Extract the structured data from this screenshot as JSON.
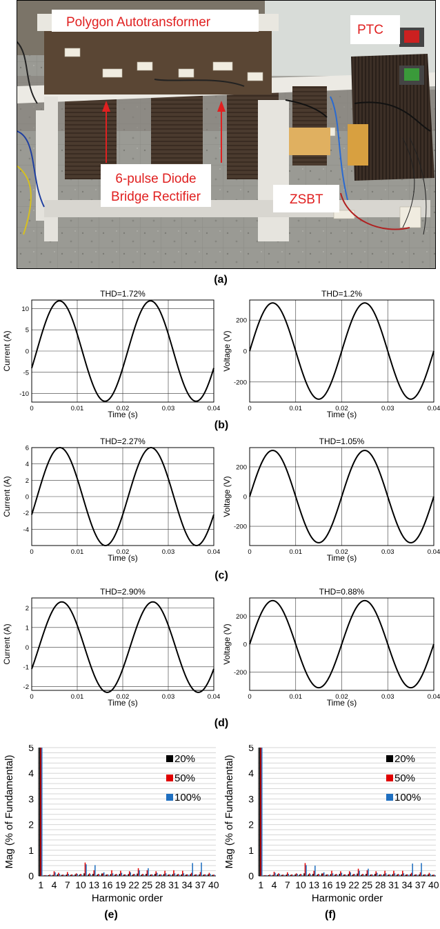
{
  "photo": {
    "labels": {
      "polygon": "Polygon Autotransformer",
      "ptc": "PTC",
      "rectifier_line1": "6-pulse Diode",
      "rectifier_line2": "Bridge Rectifier",
      "zsbt": "ZSBT"
    },
    "colors": {
      "label_text": "#e02020",
      "arrow": "#e02020"
    }
  },
  "captions": {
    "a": "(a)",
    "b": "(b)",
    "c": "(c)",
    "d": "(d)",
    "e": "(e)",
    "f": "(f)"
  },
  "chart_data": [
    {
      "id": "b-current",
      "type": "line",
      "title": "THD=1.72%",
      "xlabel": "Time (s)",
      "ylabel": "Current (A)",
      "xlim": [
        0,
        0.04
      ],
      "ylim": [
        -12,
        12
      ],
      "xticks": [
        "0",
        "0.01",
        "0.02",
        "0.03",
        "0.04"
      ],
      "yticks": [
        {
          "v": 10,
          "t": "10"
        },
        {
          "v": 5,
          "t": "5"
        },
        {
          "v": 0,
          "t": "0"
        },
        {
          "v": -5,
          "t": "-5"
        },
        {
          "v": -10,
          "t": "-10"
        }
      ],
      "waveform": {
        "amplitude": 11.8,
        "frequency_hz": 50,
        "zero_crossing_s": 0.0011
      }
    },
    {
      "id": "b-voltage",
      "type": "line",
      "title": "THD=1.2%",
      "xlabel": "Time (s)",
      "ylabel": "Voltage (V)",
      "xlim": [
        0,
        0.04
      ],
      "ylim": [
        -330,
        330
      ],
      "xticks": [
        "0",
        "0.01",
        "0.02",
        "0.03",
        "0.04"
      ],
      "yticks": [
        {
          "v": 200,
          "t": "200"
        },
        {
          "v": 0,
          "t": "0"
        },
        {
          "v": -200,
          "t": "-200"
        }
      ],
      "waveform": {
        "amplitude": 311,
        "frequency_hz": 50,
        "zero_crossing_s": 0
      }
    },
    {
      "id": "c-current",
      "type": "line",
      "title": "THD=2.27%",
      "xlabel": "Time (s)",
      "ylabel": "Current (A)",
      "xlim": [
        0,
        0.04
      ],
      "ylim": [
        -6,
        6
      ],
      "xticks": [
        "0",
        "0.01",
        "0.02",
        "0.03",
        "0.04"
      ],
      "yticks": [
        {
          "v": 6,
          "t": "6"
        },
        {
          "v": 4,
          "t": "4"
        },
        {
          "v": 2,
          "t": "2"
        },
        {
          "v": 0,
          "t": "0"
        },
        {
          "v": -2,
          "t": "-2"
        },
        {
          "v": -4,
          "t": "-4"
        }
      ],
      "waveform": {
        "amplitude": 6.0,
        "frequency_hz": 50,
        "zero_crossing_s": 0.0012
      }
    },
    {
      "id": "c-voltage",
      "type": "line",
      "title": "THD=1.05%",
      "xlabel": "Time (s)",
      "ylabel": "Voltage (V)",
      "xlim": [
        0,
        0.04
      ],
      "ylim": [
        -330,
        330
      ],
      "xticks": [
        "0",
        "0.01",
        "0.02",
        "0.03",
        "0.04"
      ],
      "yticks": [
        {
          "v": 200,
          "t": "200"
        },
        {
          "v": 0,
          "t": "0"
        },
        {
          "v": -200,
          "t": "-200"
        }
      ],
      "waveform": {
        "amplitude": 311,
        "frequency_hz": 50,
        "zero_crossing_s": 0
      }
    },
    {
      "id": "d-current",
      "type": "line",
      "title": "THD=2.90%",
      "xlabel": "Time (s)",
      "ylabel": "Current (A)",
      "xlim": [
        0,
        0.04
      ],
      "ylim": [
        -2.2,
        2.5
      ],
      "xticks": [
        "0",
        "0.01",
        "0.02",
        "0.03",
        "0.04"
      ],
      "yticks": [
        {
          "v": 2,
          "t": "2"
        },
        {
          "v": 1,
          "t": "1"
        },
        {
          "v": 0,
          "t": "0"
        },
        {
          "v": -1,
          "t": "-1"
        },
        {
          "v": -2,
          "t": "-2"
        }
      ],
      "waveform": {
        "amplitude": 2.3,
        "frequency_hz": 50,
        "zero_crossing_s": 0.0016
      }
    },
    {
      "id": "d-voltage",
      "type": "line",
      "title": "THD=0.88%",
      "xlabel": "Time (s)",
      "ylabel": "Voltage (V)",
      "xlim": [
        0,
        0.04
      ],
      "ylim": [
        -330,
        330
      ],
      "xticks": [
        "0",
        "0.01",
        "0.02",
        "0.03",
        "0.04"
      ],
      "yticks": [
        {
          "v": 200,
          "t": "200"
        },
        {
          "v": 0,
          "t": "0"
        },
        {
          "v": -200,
          "t": "-200"
        }
      ],
      "waveform": {
        "amplitude": 311,
        "frequency_hz": 50,
        "zero_crossing_s": 0
      }
    },
    {
      "id": "e",
      "type": "bar",
      "xlabel": "Harmonic order",
      "ylabel": "Mag (% of Fundamental)",
      "ylim": [
        0,
        5
      ],
      "yticks": [
        "0",
        "1",
        "2",
        "3",
        "4",
        "5"
      ],
      "categories": [
        "1",
        "2",
        "3",
        "4",
        "5",
        "6",
        "7",
        "8",
        "9",
        "10",
        "11",
        "12",
        "13",
        "14",
        "15",
        "16",
        "17",
        "18",
        "19",
        "20",
        "21",
        "22",
        "23",
        "24",
        "25",
        "26",
        "27",
        "28",
        "29",
        "30",
        "31",
        "32",
        "33",
        "34",
        "35",
        "36",
        "37",
        "38",
        "39",
        "40"
      ],
      "xtick_labels": [
        "1",
        "4",
        "7",
        "10",
        "13",
        "16",
        "19",
        "22",
        "25",
        "28",
        "31",
        "34",
        "37",
        "40"
      ],
      "legend": "top-right",
      "series": [
        {
          "name": "20%",
          "color": "#000000",
          "values": [
            5,
            0.02,
            0.03,
            0.04,
            0.06,
            0.04,
            0.05,
            0.04,
            0.06,
            0.05,
            0.1,
            0.06,
            0.08,
            0.05,
            0.09,
            0.05,
            0.07,
            0.05,
            0.08,
            0.05,
            0.07,
            0.05,
            0.09,
            0.05,
            0.08,
            0.05,
            0.08,
            0.05,
            0.07,
            0.05,
            0.07,
            0.05,
            0.06,
            0.05,
            0.07,
            0.05,
            0.06,
            0.05,
            0.06,
            0.04
          ]
        },
        {
          "name": "50%",
          "color": "#e00000",
          "values": [
            5,
            0.03,
            0.05,
            0.18,
            0.12,
            0.05,
            0.15,
            0.06,
            0.1,
            0.08,
            0.52,
            0.1,
            0.22,
            0.08,
            0.1,
            0.06,
            0.22,
            0.08,
            0.2,
            0.06,
            0.18,
            0.08,
            0.3,
            0.08,
            0.22,
            0.06,
            0.18,
            0.06,
            0.2,
            0.06,
            0.22,
            0.08,
            0.2,
            0.06,
            0.12,
            0.06,
            0.15,
            0.06,
            0.12,
            0.05
          ]
        },
        {
          "name": "100%",
          "color": "#1f6fc0",
          "values": [
            5,
            0.03,
            0.04,
            0.14,
            0.08,
            0.04,
            0.08,
            0.04,
            0.08,
            0.05,
            0.45,
            0.06,
            0.42,
            0.05,
            0.14,
            0.05,
            0.1,
            0.05,
            0.12,
            0.04,
            0.14,
            0.06,
            0.22,
            0.05,
            0.3,
            0.05,
            0.12,
            0.05,
            0.1,
            0.05,
            0.1,
            0.05,
            0.1,
            0.05,
            0.5,
            0.05,
            0.52,
            0.05,
            0.08,
            0.04
          ]
        }
      ]
    },
    {
      "id": "f",
      "type": "bar",
      "xlabel": "Harmonic order",
      "ylabel": "Mag (% of Fundamental)",
      "ylim": [
        0,
        5
      ],
      "yticks": [
        "0",
        "1",
        "2",
        "3",
        "4",
        "5"
      ],
      "categories": [
        "1",
        "2",
        "3",
        "4",
        "5",
        "6",
        "7",
        "8",
        "9",
        "10",
        "11",
        "12",
        "13",
        "14",
        "15",
        "16",
        "17",
        "18",
        "19",
        "20",
        "21",
        "22",
        "23",
        "24",
        "25",
        "26",
        "27",
        "28",
        "29",
        "30",
        "31",
        "32",
        "33",
        "34",
        "35",
        "36",
        "37",
        "38",
        "39",
        "40"
      ],
      "xtick_labels": [
        "1",
        "4",
        "7",
        "10",
        "13",
        "16",
        "19",
        "22",
        "25",
        "28",
        "31",
        "34",
        "37",
        "40"
      ],
      "legend": "top-right",
      "series": [
        {
          "name": "20%",
          "color": "#000000",
          "values": [
            5,
            0.02,
            0.03,
            0.04,
            0.06,
            0.04,
            0.05,
            0.04,
            0.06,
            0.05,
            0.1,
            0.06,
            0.08,
            0.05,
            0.09,
            0.05,
            0.07,
            0.05,
            0.08,
            0.05,
            0.07,
            0.05,
            0.09,
            0.05,
            0.08,
            0.05,
            0.08,
            0.05,
            0.07,
            0.05,
            0.07,
            0.05,
            0.06,
            0.05,
            0.07,
            0.05,
            0.06,
            0.05,
            0.06,
            0.04
          ]
        },
        {
          "name": "50%",
          "color": "#e00000",
          "values": [
            5,
            0.03,
            0.05,
            0.16,
            0.1,
            0.05,
            0.14,
            0.06,
            0.1,
            0.08,
            0.5,
            0.1,
            0.2,
            0.08,
            0.1,
            0.06,
            0.2,
            0.08,
            0.18,
            0.06,
            0.18,
            0.08,
            0.28,
            0.08,
            0.22,
            0.06,
            0.18,
            0.06,
            0.2,
            0.06,
            0.2,
            0.08,
            0.2,
            0.06,
            0.12,
            0.06,
            0.14,
            0.06,
            0.12,
            0.05
          ]
        },
        {
          "name": "100%",
          "color": "#1f6fc0",
          "values": [
            5,
            0.03,
            0.04,
            0.12,
            0.08,
            0.04,
            0.08,
            0.04,
            0.08,
            0.05,
            0.42,
            0.06,
            0.4,
            0.05,
            0.14,
            0.05,
            0.1,
            0.05,
            0.12,
            0.04,
            0.14,
            0.06,
            0.2,
            0.05,
            0.28,
            0.05,
            0.12,
            0.05,
            0.1,
            0.05,
            0.1,
            0.05,
            0.1,
            0.05,
            0.48,
            0.05,
            0.5,
            0.05,
            0.08,
            0.04
          ]
        }
      ]
    }
  ]
}
